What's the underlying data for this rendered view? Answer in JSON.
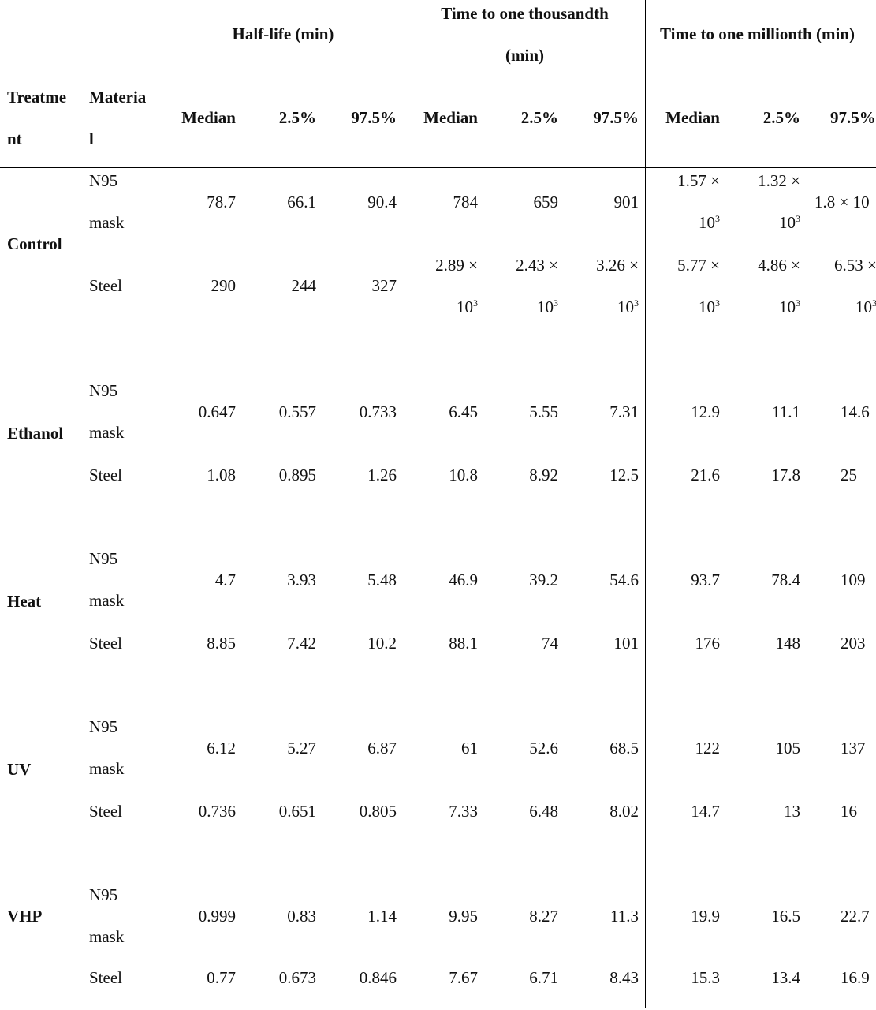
{
  "table": {
    "group_headers": {
      "treatment_line1": "Treatme",
      "treatment_line2": "nt",
      "material_line1": "Materia",
      "material_line2": "l",
      "half_life": "Half-life (min)",
      "thousandth_line1": "Time to one thousandth",
      "thousandth_line2": "(min)",
      "millionth": "Time to one millionth (min)"
    },
    "sub_headers": {
      "hl_median": "Median",
      "hl_low": "2.5%",
      "hl_high": "97.5%",
      "th_median": "Median",
      "th_low": "2.5%",
      "th_high": "97.5%",
      "mi_median": "Median",
      "mi_low": "2.5%",
      "mi_high": "97.5%"
    },
    "treatments": {
      "control": "Control",
      "ethanol": "Ethanol",
      "heat": "Heat",
      "uv": "UV",
      "vhp": "VHP"
    },
    "materials": {
      "n95_line1": "N95",
      "n95_line2": "mask",
      "steel": "Steel"
    },
    "rows": {
      "control_n95": {
        "hl_med": "78.7",
        "hl_lo": "66.1",
        "hl_hi": "90.4",
        "th_med": "784",
        "th_lo": "659",
        "th_hi": "901",
        "mi_med_a": "1.57 ×",
        "mi_med_b": "10",
        "mi_lo_a": "1.32 ×",
        "mi_lo_b": "10",
        "mi_hi": "1.8 × 10",
        "exp": "3"
      },
      "control_steel": {
        "hl_med": "290",
        "hl_lo": "244",
        "hl_hi": "327",
        "th_med_a": "2.89 ×",
        "th_med_b": "10",
        "th_lo_a": "2.43 ×",
        "th_lo_b": "10",
        "th_hi_a": "3.26 ×",
        "th_hi_b": "10",
        "mi_med_a": "5.77 ×",
        "mi_med_b": "10",
        "mi_lo_a": "4.86 ×",
        "mi_lo_b": "10",
        "mi_hi_a": "6.53 ×",
        "mi_hi_b": "10",
        "exp": "3"
      },
      "ethanol_n95": {
        "hl_med": "0.647",
        "hl_lo": "0.557",
        "hl_hi": "0.733",
        "th_med": "6.45",
        "th_lo": "5.55",
        "th_hi": "7.31",
        "mi_med": "12.9",
        "mi_lo": "11.1",
        "mi_hi": "14.6"
      },
      "ethanol_steel": {
        "hl_med": "1.08",
        "hl_lo": "0.895",
        "hl_hi": "1.26",
        "th_med": "10.8",
        "th_lo": "8.92",
        "th_hi": "12.5",
        "mi_med": "21.6",
        "mi_lo": "17.8",
        "mi_hi": "25"
      },
      "heat_n95": {
        "hl_med": "4.7",
        "hl_lo": "3.93",
        "hl_hi": "5.48",
        "th_med": "46.9",
        "th_lo": "39.2",
        "th_hi": "54.6",
        "mi_med": "93.7",
        "mi_lo": "78.4",
        "mi_hi": "109"
      },
      "heat_steel": {
        "hl_med": "8.85",
        "hl_lo": "7.42",
        "hl_hi": "10.2",
        "th_med": "88.1",
        "th_lo": "74",
        "th_hi": "101",
        "mi_med": "176",
        "mi_lo": "148",
        "mi_hi": "203"
      },
      "uv_n95": {
        "hl_med": "6.12",
        "hl_lo": "5.27",
        "hl_hi": "6.87",
        "th_med": "61",
        "th_lo": "52.6",
        "th_hi": "68.5",
        "mi_med": "122",
        "mi_lo": "105",
        "mi_hi": "137"
      },
      "uv_steel": {
        "hl_med": "0.736",
        "hl_lo": "0.651",
        "hl_hi": "0.805",
        "th_med": "7.33",
        "th_lo": "6.48",
        "th_hi": "8.02",
        "mi_med": "14.7",
        "mi_lo": "13",
        "mi_hi": "16"
      },
      "vhp_n95": {
        "hl_med": "0.999",
        "hl_lo": "0.83",
        "hl_hi": "1.14",
        "th_med": "9.95",
        "th_lo": "8.27",
        "th_hi": "11.3",
        "mi_med": "19.9",
        "mi_lo": "16.5",
        "mi_hi": "22.7"
      },
      "vhp_steel": {
        "hl_med": "0.77",
        "hl_lo": "0.673",
        "hl_hi": "0.846",
        "th_med": "7.67",
        "th_lo": "6.71",
        "th_hi": "8.43",
        "mi_med": "15.3",
        "mi_lo": "13.4",
        "mi_hi": "16.9"
      }
    }
  }
}
